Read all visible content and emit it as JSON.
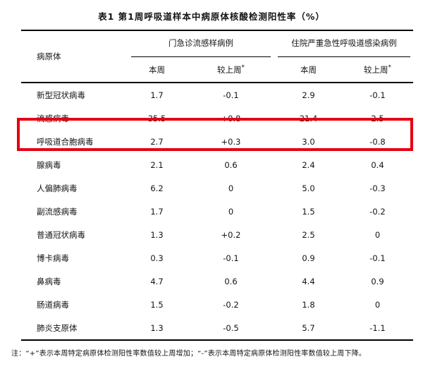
{
  "title": "表1 第1周呼吸道样本中病原体核酸检测阳性率（%）",
  "star": "*",
  "table": {
    "row_header": "病原体",
    "groups": [
      {
        "label": "门急诊流感样病例",
        "columns": [
          "本周",
          "较上周"
        ]
      },
      {
        "label": "住院严重急性呼吸道感染病例",
        "columns": [
          "本周",
          "较上周"
        ]
      }
    ],
    "rows": [
      {
        "name": "新型冠状病毒",
        "values": [
          "1.7",
          "-0.1",
          "2.9",
          "-0.1"
        ],
        "highlighted": false
      },
      {
        "name": "流感病毒",
        "values": [
          "35.5",
          "+0.8",
          "21.4",
          "2.5"
        ],
        "highlighted": true
      },
      {
        "name": "呼吸道合胞病毒",
        "values": [
          "2.7",
          "+0.3",
          "3.0",
          "-0.8"
        ],
        "highlighted": false
      },
      {
        "name": "腺病毒",
        "values": [
          "2.1",
          "0.6",
          "2.4",
          "0.4"
        ],
        "highlighted": false
      },
      {
        "name": "人偏肺病毒",
        "values": [
          "6.2",
          "0",
          "5.0",
          "-0.3"
        ],
        "highlighted": false
      },
      {
        "name": "副流感病毒",
        "values": [
          "1.7",
          "0",
          "1.5",
          "-0.2"
        ],
        "highlighted": false
      },
      {
        "name": "普通冠状病毒",
        "values": [
          "1.3",
          "+0.2",
          "2.5",
          "0"
        ],
        "highlighted": false
      },
      {
        "name": "博卡病毒",
        "values": [
          "0.3",
          "-0.1",
          "0.9",
          "-0.1"
        ],
        "highlighted": false
      },
      {
        "name": "鼻病毒",
        "values": [
          "4.7",
          "0.6",
          "4.4",
          "0.9"
        ],
        "highlighted": false
      },
      {
        "name": "肠道病毒",
        "values": [
          "1.5",
          "-0.2",
          "1.8",
          "0"
        ],
        "highlighted": false
      },
      {
        "name": "肺炎支原体",
        "values": [
          "1.3",
          "-0.5",
          "5.7",
          "-1.1"
        ],
        "highlighted": false
      }
    ]
  },
  "highlight": {
    "row": "流感病毒",
    "color": "#e60012"
  },
  "footnote": "注：“+”表示本周特定病原体检测阳性率数值较上周增加；“-”表示本周特定病原体检测阳性率数值较上周下降。"
}
